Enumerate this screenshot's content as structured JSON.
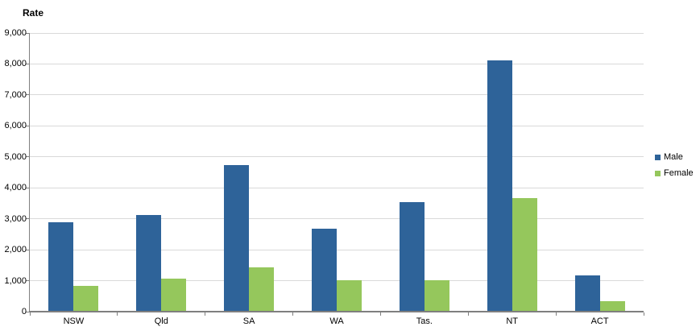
{
  "chart_data": {
    "type": "bar",
    "title": "Rate",
    "categories": [
      "NSW",
      "Qld",
      "SA",
      "WA",
      "Tas.",
      "NT",
      "ACT"
    ],
    "series": [
      {
        "name": "Male",
        "color": "#2E6399",
        "values": [
          2850,
          3100,
          4700,
          2650,
          3500,
          8100,
          1150
        ]
      },
      {
        "name": "Female",
        "color": "#95C75C",
        "values": [
          800,
          1050,
          1400,
          1000,
          1000,
          3650,
          300
        ]
      }
    ],
    "xlabel": "",
    "ylabel": "Rate",
    "ylim": [
      0,
      9000
    ],
    "ytick_interval": 1000,
    "ytick_labels": [
      "0",
      "1,000",
      "2,000",
      "3,000",
      "4,000",
      "5,000",
      "6,000",
      "7,000",
      "8,000",
      "9,000"
    ],
    "grid": true,
    "legend_position": "right"
  },
  "colors": {
    "male": "#2E6399",
    "female": "#95C75C",
    "gridline": "#D9D9D9",
    "axis": "#7F7F7F",
    "text": "#000000",
    "background": "#FFFFFF"
  }
}
